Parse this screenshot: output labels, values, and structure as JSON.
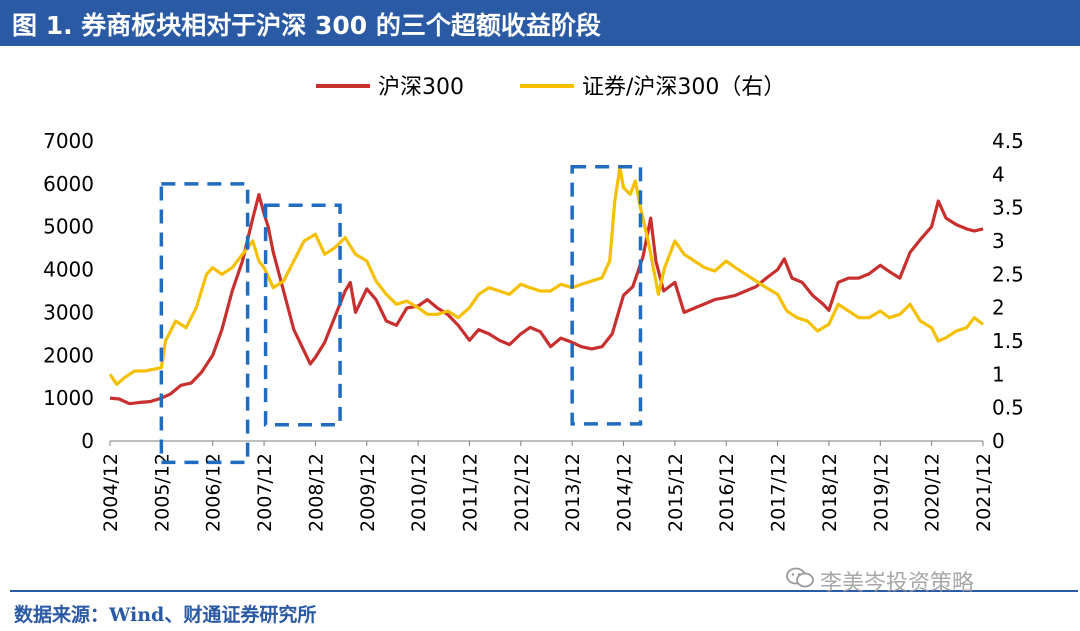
{
  "title": "图 1. 券商板块相对于沪深 300 的三个超额收益阶段",
  "source": "数据来源：Wind、财通证券研究所",
  "watermark": "李美岑投资策略",
  "colors": {
    "hs300": "#c8302f",
    "ratio": "#f5c001",
    "box": "#1f6cc0",
    "title_bg": "#2b5aa4"
  },
  "chart_data": {
    "type": "line",
    "title": "",
    "legend": [
      {
        "name": "沪深300",
        "color": "#c8302f"
      },
      {
        "name": "证券/沪深300（右）",
        "color": "#f5c001"
      }
    ],
    "legend_position": "top-center",
    "x_tick_labels": [
      "2004/12",
      "2005/12",
      "2006/12",
      "2007/12",
      "2008/12",
      "2009/12",
      "2010/12",
      "2011/12",
      "2012/12",
      "2013/12",
      "2014/12",
      "2015/12",
      "2016/12",
      "2017/12",
      "2018/12",
      "2019/12",
      "2020/12",
      "2021/12"
    ],
    "x_range": [
      2004.92,
      2021.92
    ],
    "y_left": {
      "min": 0,
      "max": 7000,
      "ticks": [
        "0",
        "1000",
        "2000",
        "3000",
        "4000",
        "5000",
        "6000",
        "7000"
      ]
    },
    "y_right": {
      "min": 0,
      "max": 4.5,
      "ticks": [
        "0",
        "0.5",
        "1",
        "1.5",
        "2",
        "2.5",
        "3",
        "3.5",
        "4",
        "4.5"
      ]
    },
    "series": [
      {
        "name": "沪深300",
        "axis": "left",
        "points": [
          [
            2004.92,
            1000
          ],
          [
            2005.1,
            980
          ],
          [
            2005.3,
            870
          ],
          [
            2005.5,
            900
          ],
          [
            2005.7,
            920
          ],
          [
            2005.92,
            1000
          ],
          [
            2006.1,
            1100
          ],
          [
            2006.3,
            1300
          ],
          [
            2006.5,
            1350
          ],
          [
            2006.7,
            1600
          ],
          [
            2006.92,
            2000
          ],
          [
            2007.1,
            2600
          ],
          [
            2007.3,
            3500
          ],
          [
            2007.5,
            4200
          ],
          [
            2007.7,
            5200
          ],
          [
            2007.82,
            5750
          ],
          [
            2007.92,
            5300
          ],
          [
            2008.0,
            5000
          ],
          [
            2008.1,
            4400
          ],
          [
            2008.3,
            3500
          ],
          [
            2008.5,
            2600
          ],
          [
            2008.7,
            2100
          ],
          [
            2008.82,
            1800
          ],
          [
            2008.92,
            1950
          ],
          [
            2009.1,
            2300
          ],
          [
            2009.3,
            2900
          ],
          [
            2009.5,
            3500
          ],
          [
            2009.6,
            3700
          ],
          [
            2009.7,
            3000
          ],
          [
            2009.92,
            3550
          ],
          [
            2010.1,
            3300
          ],
          [
            2010.3,
            2800
          ],
          [
            2010.5,
            2700
          ],
          [
            2010.7,
            3100
          ],
          [
            2010.92,
            3150
          ],
          [
            2011.1,
            3300
          ],
          [
            2011.3,
            3100
          ],
          [
            2011.5,
            2950
          ],
          [
            2011.7,
            2700
          ],
          [
            2011.92,
            2350
          ],
          [
            2012.1,
            2600
          ],
          [
            2012.3,
            2500
          ],
          [
            2012.5,
            2350
          ],
          [
            2012.7,
            2250
          ],
          [
            2012.92,
            2500
          ],
          [
            2013.1,
            2650
          ],
          [
            2013.3,
            2550
          ],
          [
            2013.5,
            2200
          ],
          [
            2013.7,
            2400
          ],
          [
            2013.92,
            2300
          ],
          [
            2014.1,
            2200
          ],
          [
            2014.3,
            2150
          ],
          [
            2014.5,
            2200
          ],
          [
            2014.7,
            2500
          ],
          [
            2014.92,
            3400
          ],
          [
            2015.1,
            3600
          ],
          [
            2015.3,
            4300
          ],
          [
            2015.45,
            5200
          ],
          [
            2015.55,
            4200
          ],
          [
            2015.7,
            3500
          ],
          [
            2015.92,
            3700
          ],
          [
            2016.1,
            3000
          ],
          [
            2016.3,
            3100
          ],
          [
            2016.5,
            3200
          ],
          [
            2016.7,
            3300
          ],
          [
            2016.92,
            3350
          ],
          [
            2017.1,
            3400
          ],
          [
            2017.3,
            3500
          ],
          [
            2017.5,
            3600
          ],
          [
            2017.7,
            3800
          ],
          [
            2017.92,
            4000
          ],
          [
            2018.05,
            4250
          ],
          [
            2018.2,
            3800
          ],
          [
            2018.4,
            3700
          ],
          [
            2018.6,
            3400
          ],
          [
            2018.8,
            3200
          ],
          [
            2018.92,
            3050
          ],
          [
            2019.1,
            3700
          ],
          [
            2019.3,
            3800
          ],
          [
            2019.5,
            3800
          ],
          [
            2019.7,
            3900
          ],
          [
            2019.92,
            4100
          ],
          [
            2020.1,
            3950
          ],
          [
            2020.3,
            3800
          ],
          [
            2020.5,
            4400
          ],
          [
            2020.7,
            4700
          ],
          [
            2020.92,
            5000
          ],
          [
            2021.05,
            5600
          ],
          [
            2021.2,
            5200
          ],
          [
            2021.4,
            5050
          ],
          [
            2021.6,
            4950
          ],
          [
            2021.75,
            4900
          ],
          [
            2021.92,
            4950
          ]
        ]
      },
      {
        "name": "证券/沪深300（右）",
        "axis": "right",
        "points": [
          [
            2004.92,
            1.0
          ],
          [
            2005.05,
            0.85
          ],
          [
            2005.2,
            0.95
          ],
          [
            2005.4,
            1.05
          ],
          [
            2005.6,
            1.05
          ],
          [
            2005.92,
            1.1
          ],
          [
            2006.0,
            1.5
          ],
          [
            2006.2,
            1.8
          ],
          [
            2006.4,
            1.7
          ],
          [
            2006.6,
            2.0
          ],
          [
            2006.8,
            2.5
          ],
          [
            2006.92,
            2.6
          ],
          [
            2007.1,
            2.5
          ],
          [
            2007.3,
            2.6
          ],
          [
            2007.5,
            2.8
          ],
          [
            2007.7,
            3.0
          ],
          [
            2007.82,
            2.7
          ],
          [
            2007.92,
            2.6
          ],
          [
            2008.1,
            2.3
          ],
          [
            2008.3,
            2.4
          ],
          [
            2008.5,
            2.7
          ],
          [
            2008.7,
            3.0
          ],
          [
            2008.92,
            3.1
          ],
          [
            2009.1,
            2.8
          ],
          [
            2009.3,
            2.9
          ],
          [
            2009.5,
            3.05
          ],
          [
            2009.7,
            2.8
          ],
          [
            2009.92,
            2.7
          ],
          [
            2010.1,
            2.4
          ],
          [
            2010.3,
            2.2
          ],
          [
            2010.5,
            2.05
          ],
          [
            2010.7,
            2.1
          ],
          [
            2010.92,
            2.0
          ],
          [
            2011.1,
            1.9
          ],
          [
            2011.3,
            1.9
          ],
          [
            2011.5,
            1.95
          ],
          [
            2011.7,
            1.85
          ],
          [
            2011.92,
            2.0
          ],
          [
            2012.1,
            2.2
          ],
          [
            2012.3,
            2.3
          ],
          [
            2012.5,
            2.25
          ],
          [
            2012.7,
            2.2
          ],
          [
            2012.92,
            2.35
          ],
          [
            2013.1,
            2.3
          ],
          [
            2013.3,
            2.25
          ],
          [
            2013.5,
            2.25
          ],
          [
            2013.7,
            2.35
          ],
          [
            2013.92,
            2.3
          ],
          [
            2014.1,
            2.35
          ],
          [
            2014.3,
            2.4
          ],
          [
            2014.5,
            2.45
          ],
          [
            2014.65,
            2.7
          ],
          [
            2014.75,
            3.6
          ],
          [
            2014.85,
            4.1
          ],
          [
            2014.92,
            3.8
          ],
          [
            2015.05,
            3.7
          ],
          [
            2015.15,
            3.9
          ],
          [
            2015.25,
            3.5
          ],
          [
            2015.4,
            3.0
          ],
          [
            2015.5,
            2.6
          ],
          [
            2015.6,
            2.2
          ],
          [
            2015.72,
            2.6
          ],
          [
            2015.92,
            3.0
          ],
          [
            2016.1,
            2.8
          ],
          [
            2016.3,
            2.7
          ],
          [
            2016.5,
            2.6
          ],
          [
            2016.7,
            2.55
          ],
          [
            2016.92,
            2.7
          ],
          [
            2017.1,
            2.6
          ],
          [
            2017.3,
            2.5
          ],
          [
            2017.5,
            2.4
          ],
          [
            2017.7,
            2.3
          ],
          [
            2017.92,
            2.2
          ],
          [
            2018.1,
            1.95
          ],
          [
            2018.3,
            1.85
          ],
          [
            2018.5,
            1.8
          ],
          [
            2018.7,
            1.65
          ],
          [
            2018.92,
            1.75
          ],
          [
            2019.1,
            2.05
          ],
          [
            2019.3,
            1.95
          ],
          [
            2019.5,
            1.85
          ],
          [
            2019.7,
            1.85
          ],
          [
            2019.92,
            1.95
          ],
          [
            2020.1,
            1.85
          ],
          [
            2020.3,
            1.9
          ],
          [
            2020.5,
            2.05
          ],
          [
            2020.7,
            1.8
          ],
          [
            2020.92,
            1.7
          ],
          [
            2021.05,
            1.5
          ],
          [
            2021.2,
            1.55
          ],
          [
            2021.4,
            1.65
          ],
          [
            2021.6,
            1.7
          ],
          [
            2021.75,
            1.85
          ],
          [
            2021.92,
            1.75
          ]
        ]
      }
    ],
    "highlight_boxes": [
      {
        "x_start": 2005.92,
        "x_end": 2007.6,
        "y_top": 6000,
        "y_bottom": -500,
        "axis": "left"
      },
      {
        "x_start": 2007.95,
        "x_end": 2009.4,
        "y_top": 5500,
        "y_bottom": 380,
        "axis": "left"
      },
      {
        "x_start": 2013.92,
        "x_end": 2015.25,
        "y_top": 6400,
        "y_bottom": 400,
        "axis": "left"
      }
    ]
  }
}
